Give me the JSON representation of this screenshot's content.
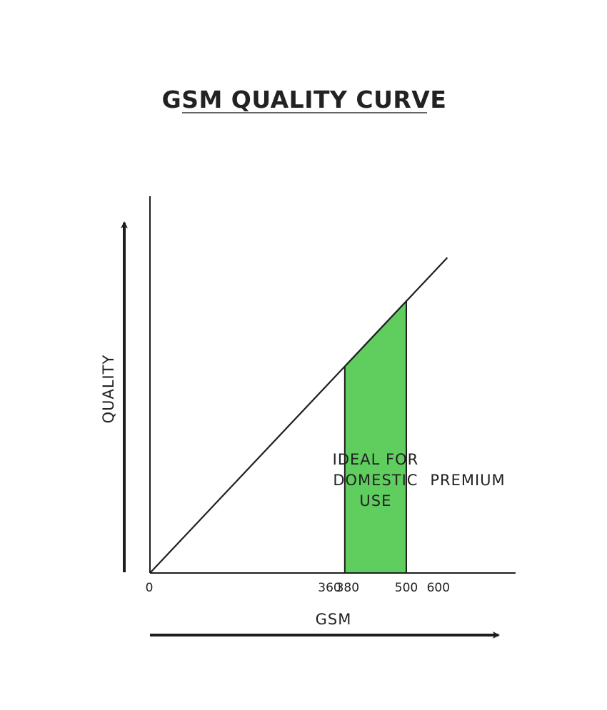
{
  "chart_data": {
    "type": "line",
    "title": "GSM QUALITY CURVE",
    "xlabel": "GSM",
    "ylabel": "QUALITY",
    "x_ticks": [
      {
        "value": 0,
        "label": "0"
      },
      {
        "value": 360,
        "label": "360"
      },
      {
        "value": 380,
        "label": "380"
      },
      {
        "value": 500,
        "label": "500"
      },
      {
        "value": 600,
        "label": "600"
      }
    ],
    "line": {
      "x": [
        0,
        580
      ],
      "y": [
        0,
        580
      ]
    },
    "highlight_region": {
      "x_start": 380,
      "x_end": 500,
      "label_lines": [
        "IDEAL FOR",
        "DOMESTIC",
        "USE"
      ],
      "color": "#5fce5f"
    },
    "annotations": [
      {
        "label": "PREMIUM",
        "x": 550,
        "y": 150
      }
    ],
    "colors": {
      "line": "#1e1e1e",
      "fill": "#5fce5f",
      "text": "#222222"
    },
    "grid": false
  }
}
